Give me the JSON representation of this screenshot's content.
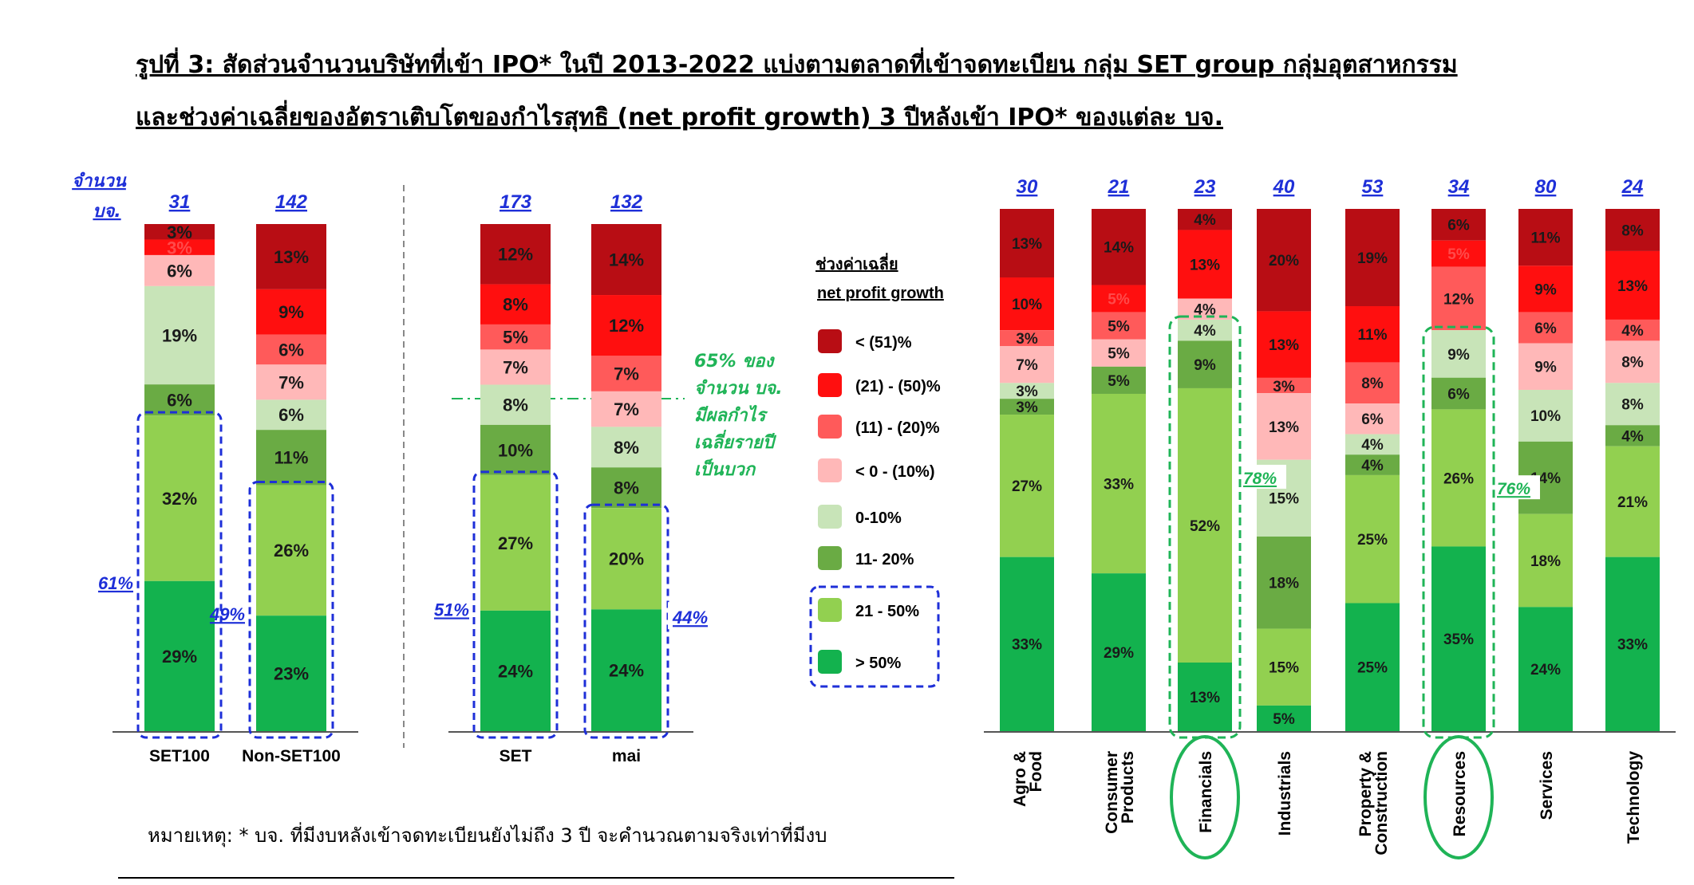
{
  "title": {
    "line1": "รูปที่ 3: สัดส่วนจำนวนบริษัทที่เข้า IPO* ในปี 2013-2022 แบ่งตามตลาดที่เข้าจดทะเบียน กลุ่ม SET group กลุ่มอุตสาหกรรม",
    "line2": "และช่วงค่าเฉลี่ยของอัตราเติบโตของกำไรสุทธิ (net profit growth) 3 ปีหลังเข้า IPO* ของแต่ละ บจ."
  },
  "count_label": {
    "line1": "จำนวน",
    "line2": "บจ."
  },
  "legend": {
    "title_line1": "ช่วงค่าเฉลี่ย",
    "title_line2": "net profit growth",
    "items": [
      "< (51)%",
      "(21) - (50)%",
      "(11) - (20)%",
      "< 0 - (10%)",
      "0-10%",
      "11- 20%",
      "21 - 50%",
      "> 50%"
    ]
  },
  "annotation": {
    "line1": "65% ของ",
    "line1_pct": "65%",
    "line2": "จำนวน บจ.",
    "line3": "มีผลกำไร",
    "line4": "เฉลี่ยรายปี",
    "line5": "เป็นบวก"
  },
  "note": "หมายเหตุ: * บจ. ที่มีงบหลังเข้าจดทะเบียนยังไม่ถึง 3 ปี จะคำนวณตามจริงเท่าที่มีงบ",
  "colors": {
    "lt_-51": "#b80d14",
    "-21_-50": "#ff0f0f",
    "-11_-20": "#ff5a5a",
    "0_-10": "#ffb8b8",
    "0_10": "#c8e4b8",
    "11_20": "#6aab44",
    "21_50": "#92d050",
    "gt_50": "#13b24e",
    "highlight_box": "#1e2fd8",
    "highlight_green": "#1fb457"
  },
  "chart_data": [
    {
      "type": "bar",
      "stacked": true,
      "series_order": [
        "< (51)%",
        "(21) - (50)%",
        "(11) - (20)%",
        "< 0 - (10%)",
        "0-10%",
        "11- 20%",
        "21 - 50%",
        "> 50%"
      ],
      "categories": [
        "SET100",
        "Non-SET100"
      ],
      "counts": [
        "31",
        "142"
      ],
      "values": [
        [
          3,
          3,
          0,
          6,
          19,
          6,
          32,
          29
        ],
        [
          13,
          9,
          6,
          7,
          6,
          11,
          26,
          23
        ]
      ],
      "labels": [
        [
          "3%",
          "3%",
          "",
          "6%",
          "19%",
          "6%",
          "32%",
          "29%"
        ],
        [
          "13%",
          "9%",
          "6%",
          "7%",
          "6%",
          "11%",
          "26%",
          "23%"
        ]
      ],
      "positive_share": [
        "61%",
        "49%"
      ]
    },
    {
      "type": "bar",
      "stacked": true,
      "series_order": [
        "< (51)%",
        "(21) - (50)%",
        "(11) - (20)%",
        "< 0 - (10%)",
        "0-10%",
        "11- 20%",
        "21 - 50%",
        "> 50%"
      ],
      "categories": [
        "SET",
        "mai"
      ],
      "counts": [
        "173",
        "132"
      ],
      "values": [
        [
          12,
          8,
          5,
          7,
          8,
          10,
          27,
          24
        ],
        [
          14,
          12,
          7,
          7,
          8,
          8,
          20,
          24
        ]
      ],
      "labels": [
        [
          "12%",
          "8%",
          "5%",
          "7%",
          "8%",
          "10%",
          "27%",
          "24%"
        ],
        [
          "14%",
          "12%",
          "7%",
          "7%",
          "8%",
          "8%",
          "20%",
          "24%"
        ]
      ],
      "positive_share": [
        "51%",
        "44%"
      ]
    },
    {
      "type": "bar",
      "stacked": true,
      "series_order": [
        "< (51)%",
        "(21) - (50)%",
        "(11) - (20)%",
        "< 0 - (10%)",
        "0-10%",
        "11- 20%",
        "21 - 50%",
        "> 50%"
      ],
      "categories": [
        "Agro & Food",
        "Consumer Products",
        "Financials",
        "Industrials",
        "Property & Construction",
        "Resources",
        "Services",
        "Technology"
      ],
      "counts": [
        "30",
        "21",
        "23",
        "40",
        "53",
        "34",
        "80",
        "24"
      ],
      "values": [
        [
          13,
          10,
          0,
          3,
          7,
          3,
          3,
          27,
          33
        ],
        [
          14,
          5,
          5,
          5,
          5,
          33,
          29
        ],
        [
          4,
          13,
          0,
          4,
          4,
          9,
          52,
          13
        ],
        [
          20,
          13,
          3,
          13,
          15,
          18,
          15,
          5
        ],
        [
          19,
          11,
          8,
          6,
          4,
          4,
          25,
          25
        ],
        [
          6,
          5,
          12,
          0,
          9,
          6,
          26,
          35
        ],
        [
          11,
          9,
          6,
          9,
          10,
          14,
          18,
          24
        ],
        [
          8,
          13,
          4,
          8,
          8,
          4,
          21,
          33
        ]
      ],
      "labels": [
        [
          "13%",
          "10%",
          "",
          "3%",
          "7%",
          "3%",
          "3%",
          "27%",
          "33%"
        ],
        [
          "14%",
          "5%",
          "5%",
          "5%",
          "5%",
          "33%",
          "29%"
        ],
        [
          "4%",
          "13%",
          "",
          "4%",
          "4%",
          "9%",
          "52%",
          "13%"
        ],
        [
          "20%",
          "13%",
          "3%",
          "13%",
          "15%",
          "18%",
          "15%",
          "5%"
        ],
        [
          "19%",
          "11%",
          "8%",
          "6%",
          "4%",
          "4%",
          "25%",
          "25%"
        ],
        [
          "6%",
          "5%",
          "12%",
          "",
          "9%",
          "6%",
          "26%",
          "35%"
        ],
        [
          "11%",
          "9%",
          "6%",
          "9%",
          "10%",
          "14%",
          "18%",
          "24%"
        ],
        [
          "8%",
          "13%",
          "4%",
          "8%",
          "8%",
          "4%",
          "21%",
          "33%"
        ]
      ],
      "segment_series": [
        [
          "< (51)%",
          "(21) - (50)%",
          "(11) - (20)%",
          "(11) - (20)%",
          "< 0 - (10%)",
          "0-10%",
          "11- 20%",
          "21 - 50%",
          "> 50%"
        ],
        [
          "< (51)%",
          "(21) - (50)%",
          "(11) - (20)%",
          "< 0 - (10%)",
          "11- 20%",
          "21 - 50%",
          "> 50%"
        ],
        [
          "< (51)%",
          "(21) - (50)%",
          "(11) - (20)%",
          "< 0 - (10%)",
          "0-10%",
          "11- 20%",
          "21 - 50%",
          "> 50%"
        ],
        [
          "< (51)%",
          "(21) - (50)%",
          "(11) - (20)%",
          "< 0 - (10%)",
          "0-10%",
          "11- 20%",
          "21 - 50%",
          "> 50%"
        ],
        [
          "< (51)%",
          "(21) - (50)%",
          "(11) - (20)%",
          "< 0 - (10%)",
          "0-10%",
          "11- 20%",
          "21 - 50%",
          "> 50%"
        ],
        [
          "< (51)%",
          "(21) - (50)%",
          "(11) - (20)%",
          "< 0 - (10%)",
          "0-10%",
          "11- 20%",
          "21 - 50%",
          "> 50%"
        ],
        [
          "< (51)%",
          "(21) - (50)%",
          "(11) - (20)%",
          "< 0 - (10%)",
          "0-10%",
          "11- 20%",
          "21 - 50%",
          "> 50%"
        ],
        [
          "< (51)%",
          "(21) - (50)%",
          "(11) - (20)%",
          "< 0 - (10%)",
          "0-10%",
          "11- 20%",
          "21 - 50%",
          "> 50%"
        ]
      ],
      "highlighted": [
        "Financials",
        "Resources"
      ],
      "positive_share": {
        "Financials": "78%",
        "Resources": "76%"
      }
    }
  ]
}
